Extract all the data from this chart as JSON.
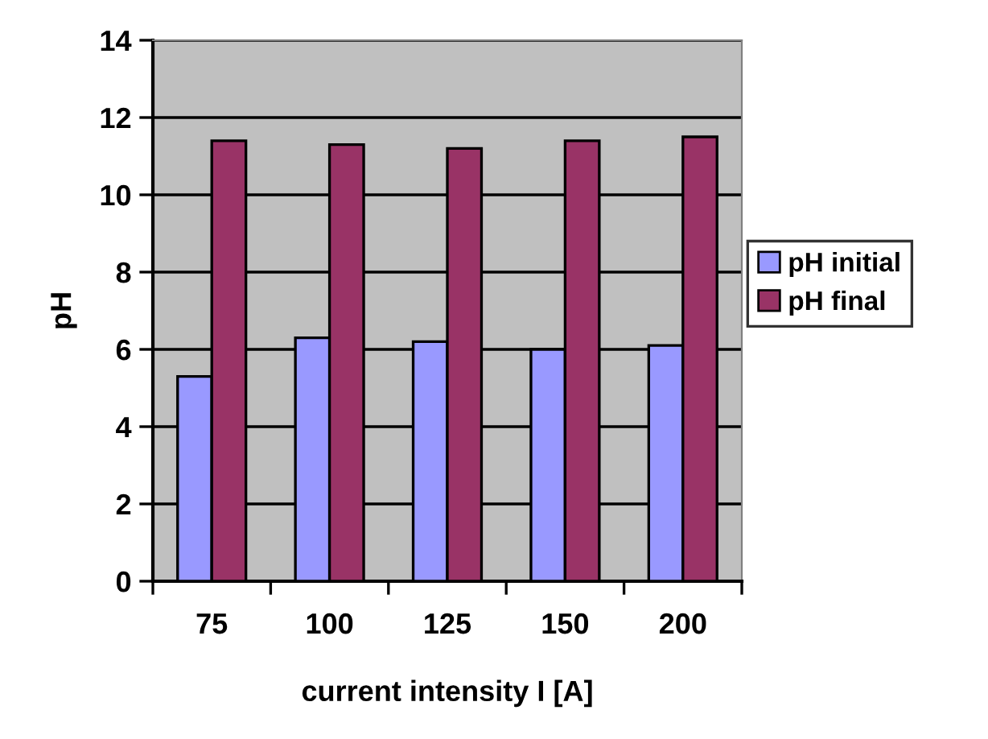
{
  "chart_data": {
    "type": "bar",
    "xlabel": "current intensity I [A]",
    "ylabel": "pH",
    "categories": [
      "75",
      "100",
      "125",
      "150",
      "200"
    ],
    "series": [
      {
        "name": "pH initial",
        "color": "#9999ff",
        "values": [
          5.3,
          6.3,
          6.2,
          6.0,
          6.1
        ]
      },
      {
        "name": "pH final",
        "color": "#993366",
        "values": [
          11.4,
          11.3,
          11.2,
          11.4,
          11.5
        ]
      }
    ],
    "ylim": [
      0,
      14
    ],
    "yticks": [
      0,
      2,
      4,
      6,
      8,
      10,
      12,
      14
    ],
    "grid": "y",
    "legend": "right"
  }
}
